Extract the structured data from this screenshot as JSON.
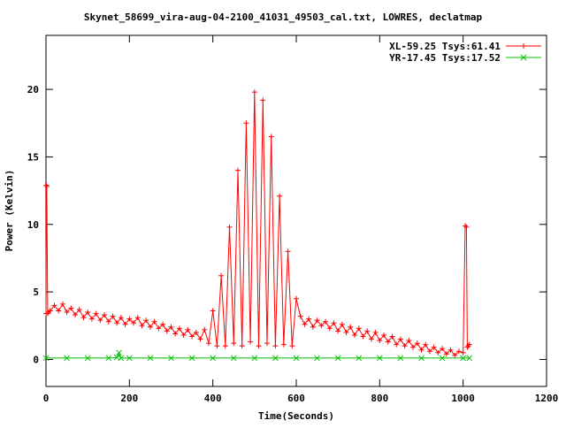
{
  "chart_data": {
    "type": "line",
    "title": "Skynet_58699_vira-aug-04-2100_41031_49503_cal.txt, LOWRES, declatmap",
    "xlabel": "Time(Seconds)",
    "ylabel": "Power (Kelvin)",
    "xlim": [
      0,
      1200
    ],
    "ylim": [
      -2,
      24
    ],
    "xticks": [
      0,
      200,
      400,
      600,
      800,
      1000,
      1200
    ],
    "yticks": [
      0,
      5,
      10,
      15,
      20
    ],
    "grid": false,
    "legend_position": "top-right",
    "series": [
      {
        "name": "XL-59.25 Tsys:61.41",
        "color": "#ff0000",
        "marker": "plus",
        "x": [
          0,
          1,
          2,
          4,
          6,
          10,
          20,
          30,
          40,
          50,
          60,
          70,
          80,
          90,
          100,
          110,
          120,
          130,
          140,
          150,
          160,
          170,
          180,
          190,
          200,
          210,
          220,
          230,
          240,
          250,
          260,
          270,
          280,
          290,
          300,
          310,
          320,
          330,
          340,
          350,
          360,
          370,
          380,
          390,
          400,
          410,
          420,
          430,
          440,
          450,
          460,
          470,
          480,
          490,
          500,
          510,
          520,
          530,
          540,
          550,
          560,
          570,
          580,
          590,
          600,
          610,
          620,
          630,
          640,
          650,
          660,
          670,
          680,
          690,
          700,
          710,
          720,
          730,
          740,
          750,
          760,
          770,
          780,
          790,
          800,
          810,
          820,
          830,
          840,
          850,
          860,
          870,
          880,
          890,
          900,
          910,
          920,
          930,
          940,
          950,
          960,
          970,
          980,
          990,
          1000,
          1005,
          1008,
          1010,
          1012,
          1015
        ],
        "y": [
          3.4,
          12.9,
          12.8,
          3.4,
          3.5,
          3.6,
          4.0,
          3.6,
          4.1,
          3.5,
          3.8,
          3.3,
          3.7,
          3.1,
          3.5,
          3.0,
          3.4,
          2.9,
          3.3,
          2.8,
          3.2,
          2.7,
          3.1,
          2.6,
          3.0,
          2.7,
          3.1,
          2.5,
          2.9,
          2.4,
          2.8,
          2.3,
          2.6,
          2.1,
          2.4,
          1.9,
          2.3,
          1.8,
          2.2,
          1.7,
          2.0,
          1.5,
          2.2,
          1.2,
          3.6,
          1.0,
          6.2,
          1.0,
          9.8,
          1.2,
          14.0,
          1.0,
          17.5,
          1.3,
          19.8,
          1.0,
          19.2,
          1.2,
          16.5,
          1.0,
          12.1,
          1.1,
          8.0,
          1.0,
          4.5,
          3.2,
          2.6,
          3.0,
          2.4,
          2.9,
          2.5,
          2.8,
          2.3,
          2.7,
          2.1,
          2.6,
          2.0,
          2.4,
          1.8,
          2.3,
          1.7,
          2.1,
          1.5,
          2.0,
          1.4,
          1.8,
          1.3,
          1.7,
          1.1,
          1.5,
          1.0,
          1.4,
          0.9,
          1.2,
          0.7,
          1.1,
          0.6,
          0.9,
          0.5,
          0.8,
          0.4,
          0.7,
          0.3,
          0.6,
          0.5,
          9.9,
          9.8,
          0.9,
          1.0,
          1.1
        ]
      },
      {
        "name": "YR-17.45 Tsys:17.52",
        "color": "#00c000",
        "marker": "cross",
        "x": [
          0,
          50,
          100,
          150,
          170,
          175,
          180,
          200,
          250,
          300,
          350,
          400,
          450,
          500,
          550,
          600,
          650,
          700,
          750,
          800,
          850,
          900,
          950,
          1000,
          1015
        ],
        "y": [
          0.1,
          0.1,
          0.1,
          0.1,
          0.15,
          0.5,
          0.1,
          0.1,
          0.1,
          0.1,
          0.1,
          0.1,
          0.1,
          0.1,
          0.1,
          0.1,
          0.1,
          0.1,
          0.1,
          0.1,
          0.1,
          0.1,
          0.1,
          0.1,
          0.1
        ]
      }
    ]
  }
}
